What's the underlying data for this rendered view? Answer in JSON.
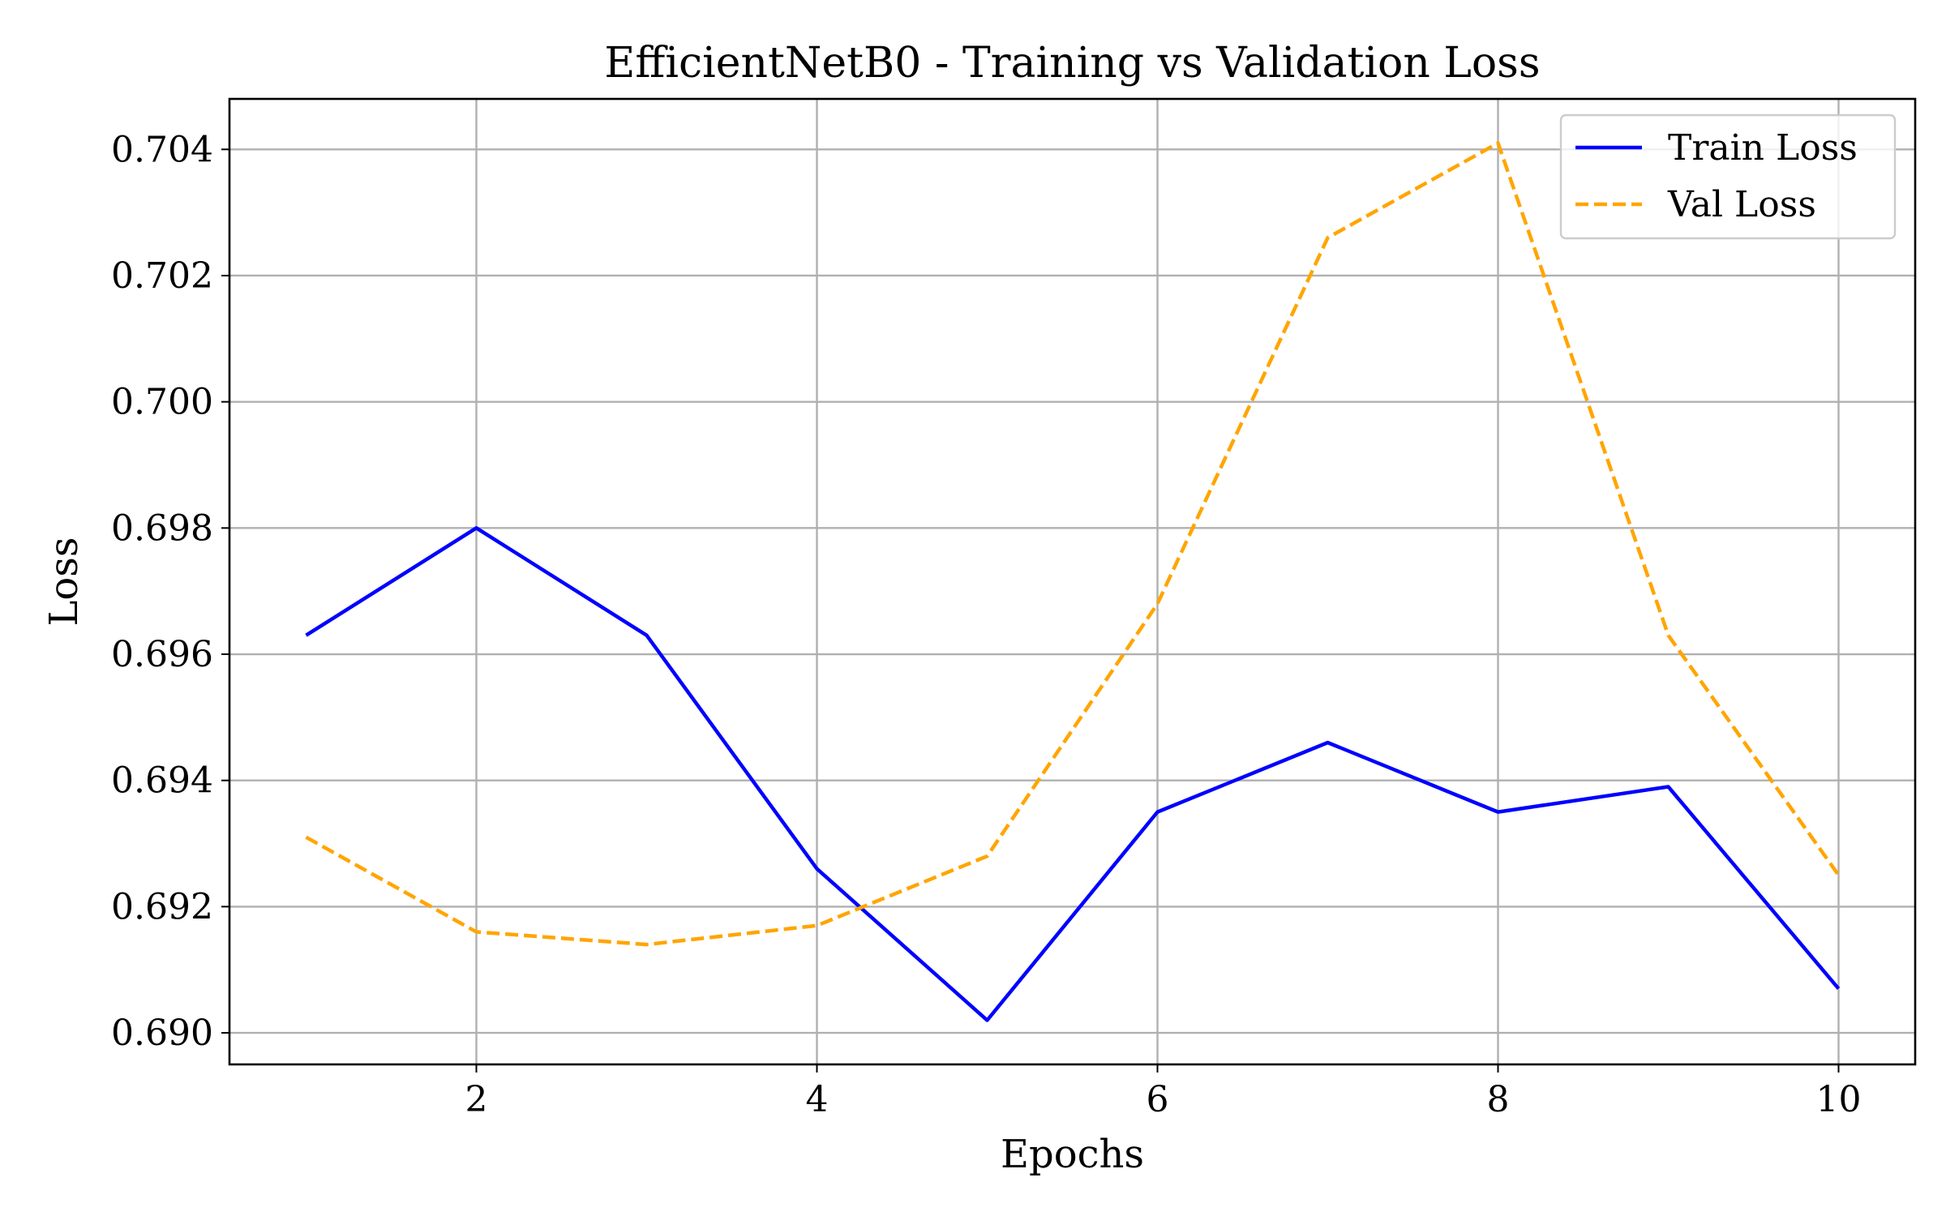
{
  "chart_data": {
    "type": "line",
    "title": "EfficientNetB0 - Training vs Validation Loss",
    "xlabel": "Epochs",
    "ylabel": "Loss",
    "x": [
      1,
      2,
      3,
      4,
      5,
      6,
      7,
      8,
      9,
      10
    ],
    "xlim": [
      0.55,
      10.45
    ],
    "ylim": [
      0.6895,
      0.7048
    ],
    "xticks": [
      2,
      4,
      6,
      8,
      10
    ],
    "xtick_labels": [
      "2",
      "4",
      "6",
      "8",
      "10"
    ],
    "yticks": [
      0.69,
      0.692,
      0.694,
      0.696,
      0.698,
      0.7,
      0.702,
      0.704
    ],
    "ytick_labels": [
      "0.690",
      "0.692",
      "0.694",
      "0.696",
      "0.698",
      "0.700",
      "0.702",
      "0.704"
    ],
    "grid": true,
    "legend_position": "top-right",
    "series": [
      {
        "name": "Train Loss",
        "color": "#0000ff",
        "style": "solid",
        "values": [
          0.6963,
          0.698,
          0.6963,
          0.6926,
          0.6902,
          0.6935,
          0.6946,
          0.6935,
          0.6939,
          0.6907
        ]
      },
      {
        "name": "Val Loss",
        "color": "#ffa500",
        "style": "dashed",
        "values": [
          0.6931,
          0.6916,
          0.6914,
          0.6917,
          0.6928,
          0.6968,
          0.7026,
          0.7041,
          0.6963,
          0.6925
        ]
      }
    ]
  }
}
